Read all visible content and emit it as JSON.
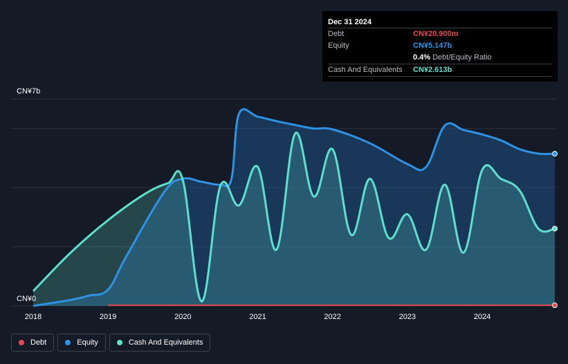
{
  "tooltip": {
    "date": "Dec 31 2024",
    "rows": [
      {
        "label": "Debt",
        "value": "CN¥20.900m"
      },
      {
        "label": "Equity",
        "value": "CN¥5.147b"
      },
      {
        "label": "",
        "value": "0.4%",
        "sub": "Debt/Equity Ratio"
      },
      {
        "label": "Cash And Equivalents",
        "value": "CN¥2.613b"
      }
    ]
  },
  "legend": [
    {
      "label": "Debt",
      "color": "#e5484d"
    },
    {
      "label": "Equity",
      "color": "#2e93e4"
    },
    {
      "label": "Cash And Equivalents",
      "color": "#5fe0cf"
    }
  ],
  "chart_data": {
    "type": "area",
    "y_unit_label_top": "CN¥7b",
    "y_unit_label_bottom": "CN¥0",
    "ylim": [
      0,
      7
    ],
    "y_unit": "CN¥ billions",
    "xlim": [
      2018,
      2024.97
    ],
    "x_ticks": [
      "2018",
      "2019",
      "2020",
      "2021",
      "2022",
      "2023",
      "2024"
    ],
    "grid": true,
    "colors": {
      "debt": "#e5484d",
      "equity": "#2e93e4",
      "cash": "#5fe0cf"
    },
    "series": [
      {
        "name": "Debt",
        "x": [
          2019.0,
          2024.97
        ],
        "y": [
          0.02,
          0.02
        ]
      },
      {
        "name": "Equity",
        "x": [
          2018.0,
          2018.5,
          2018.75,
          2019.0,
          2019.25,
          2019.75,
          2020.0,
          2020.25,
          2020.5,
          2020.65,
          2020.75,
          2021.0,
          2021.25,
          2021.5,
          2021.75,
          2022.0,
          2022.5,
          2023.0,
          2023.25,
          2023.5,
          2023.75,
          2024.0,
          2024.25,
          2024.5,
          2024.75,
          2024.97
        ],
        "y": [
          0.0,
          0.2,
          0.35,
          0.55,
          1.7,
          3.85,
          4.3,
          4.2,
          4.1,
          4.3,
          6.5,
          6.4,
          6.25,
          6.12,
          6.0,
          5.97,
          5.5,
          4.8,
          4.7,
          6.1,
          5.95,
          5.8,
          5.6,
          5.3,
          5.15,
          5.147
        ]
      },
      {
        "name": "Cash And Equivalents",
        "x": [
          2018.0,
          2018.5,
          2019.0,
          2019.5,
          2019.8,
          2020.0,
          2020.25,
          2020.5,
          2020.75,
          2021.0,
          2021.25,
          2021.5,
          2021.75,
          2022.0,
          2022.25,
          2022.5,
          2022.75,
          2023.0,
          2023.25,
          2023.5,
          2023.75,
          2024.0,
          2024.25,
          2024.5,
          2024.75,
          2024.97
        ],
        "y": [
          0.5,
          1.8,
          2.9,
          3.8,
          4.15,
          4.25,
          0.15,
          4.05,
          3.4,
          4.7,
          1.9,
          5.83,
          3.7,
          5.3,
          2.4,
          4.3,
          2.3,
          3.1,
          1.9,
          4.1,
          1.8,
          4.6,
          4.3,
          3.9,
          2.613,
          2.613
        ]
      }
    ]
  }
}
